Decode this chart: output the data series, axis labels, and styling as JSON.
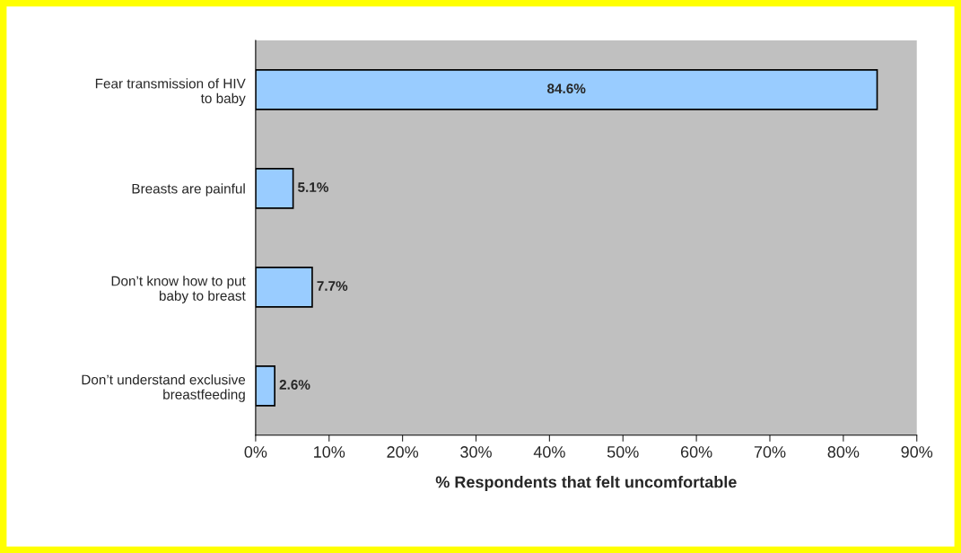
{
  "chart_data": {
    "type": "bar",
    "orientation": "horizontal",
    "xlabel": "% Respondents that felt uncomfortable",
    "categories": [
      "Fear transmission of HIV\nto baby",
      "Breasts are painful",
      "Don’t know how to put\nbaby to breast",
      "Don’t understand exclusive\nbreastfeeding"
    ],
    "values": [
      84.6,
      5.1,
      7.7,
      2.6
    ],
    "value_labels": [
      "84.6%",
      "5.1%",
      "7.7%",
      "2.6%"
    ],
    "color": "#99ccff",
    "xlim": [
      0,
      90
    ],
    "xticks": [
      {
        "value": 0,
        "label": "0%"
      },
      {
        "value": 10,
        "label": "10%"
      },
      {
        "value": 20,
        "label": "20%"
      },
      {
        "value": 30,
        "label": "30%"
      },
      {
        "value": 40,
        "label": "40%"
      },
      {
        "value": 50,
        "label": "50%"
      },
      {
        "value": 60,
        "label": "60%"
      },
      {
        "value": 70,
        "label": "70%"
      },
      {
        "value": 80,
        "label": "80%"
      },
      {
        "value": 90,
        "label": "90%"
      }
    ],
    "grid": false,
    "legend": false
  }
}
